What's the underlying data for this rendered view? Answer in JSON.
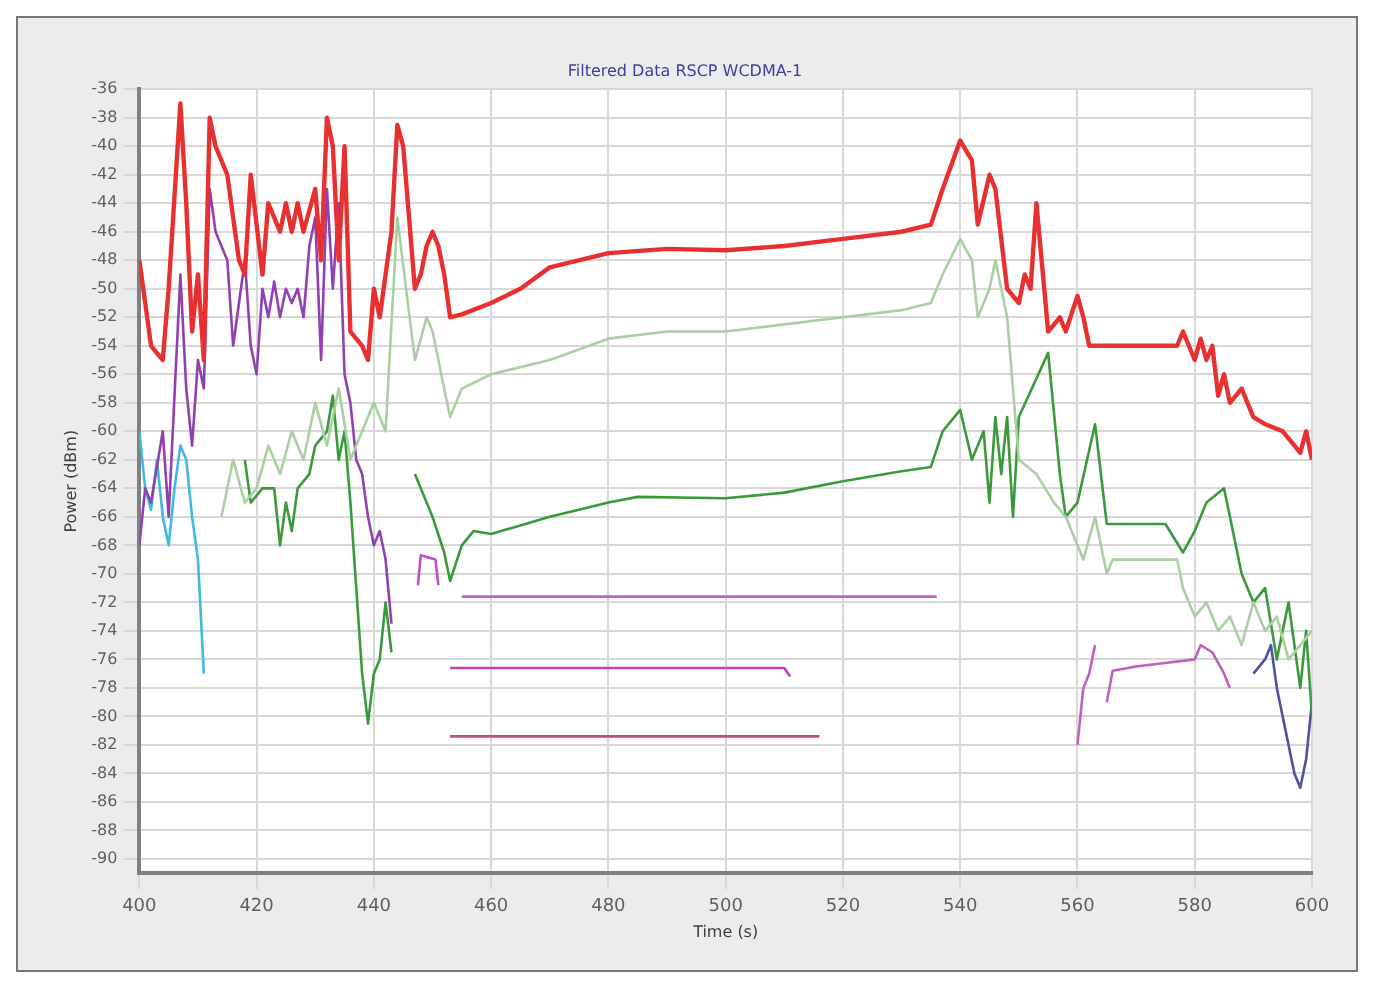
{
  "chart_data": {
    "type": "line",
    "title": "Filtered Data RSCP WCDMA-1",
    "xlabel": "Time (s)",
    "ylabel": "Power (dBm)",
    "xlim": [
      400,
      600
    ],
    "xticks": [
      400,
      420,
      440,
      460,
      480,
      500,
      520,
      540,
      560,
      580,
      600
    ],
    "ylim": [
      -91,
      -36
    ],
    "yticks": [
      -36,
      -38,
      -40,
      -42,
      -44,
      -46,
      -48,
      -50,
      -52,
      -54,
      -56,
      -58,
      -60,
      -62,
      -64,
      -66,
      -68,
      -70,
      -72,
      -74,
      -76,
      -78,
      -80,
      -82,
      -84,
      -86,
      -88,
      -90
    ],
    "grid": true,
    "legend": false,
    "marker": "none",
    "line_style": "solid",
    "series": [
      {
        "color": "#e83030",
        "x": [
          400,
          402,
          404,
          405,
          407,
          408,
          409,
          410,
          411,
          412,
          413,
          415,
          417,
          418,
          419,
          421,
          422,
          424,
          425,
          426,
          427,
          428,
          430,
          431,
          432,
          433,
          434,
          435,
          436,
          438,
          439,
          440,
          441,
          443,
          444,
          445,
          447,
          448,
          449,
          450,
          451,
          452,
          453,
          455,
          460,
          465,
          470,
          480,
          490,
          500,
          510,
          520,
          530,
          535,
          537,
          540,
          542,
          543,
          545,
          546,
          548,
          550,
          551,
          552,
          553,
          555,
          557,
          558,
          560,
          561,
          562,
          570,
          577,
          578,
          580,
          581,
          582,
          583,
          584,
          585,
          586,
          588,
          590,
          592,
          595,
          598,
          599,
          600
        ],
        "values": [
          -48,
          -54,
          -55,
          -50,
          -37,
          -44,
          -53,
          -49,
          -55,
          -38,
          -40,
          -42,
          -48,
          -49,
          -42,
          -49,
          -44,
          -46,
          -44,
          -46,
          -44,
          -46,
          -43,
          -48,
          -38,
          -40,
          -48,
          -40,
          -53,
          -54,
          -55,
          -50,
          -52,
          -46,
          -38.5,
          -40,
          -50,
          -49,
          -47,
          -46,
          -47,
          -49,
          -52,
          -51.8,
          -51,
          -50,
          -48.5,
          -47.5,
          -47.2,
          -47.3,
          -47,
          -46.5,
          -46,
          -45.5,
          -43,
          -39.6,
          -41,
          -45.5,
          -42,
          -43,
          -50,
          -51,
          -49,
          -50,
          -44,
          -53,
          -52,
          -53,
          -50.5,
          -52,
          -54,
          -54,
          -54,
          -53,
          -55,
          -53.5,
          -55,
          -54,
          -57.5,
          -56,
          -58,
          -57,
          -59,
          -59.5,
          -60,
          -61.5,
          -60,
          -62
        ]
      },
      {
        "color": "#a8d0a0",
        "x": [
          414,
          416,
          418,
          420,
          422,
          424,
          426,
          428,
          430,
          432,
          434,
          436,
          438,
          440,
          442,
          444,
          447,
          449,
          450,
          452,
          453,
          455,
          460,
          470,
          480,
          490,
          500,
          510,
          520,
          530,
          535,
          537,
          540,
          542,
          543,
          545,
          546,
          548,
          550,
          553,
          556,
          558,
          561,
          563,
          565,
          566,
          570,
          577,
          578,
          580,
          582,
          584,
          586,
          588,
          590,
          592,
          594,
          596,
          598,
          600
        ],
        "values": [
          -66,
          -62,
          -65,
          -64,
          -61,
          -63,
          -60,
          -62,
          -58,
          -61,
          -57,
          -62,
          -60,
          -58,
          -60,
          -45,
          -55,
          -52,
          -53,
          -57,
          -59,
          -57,
          -56,
          -55,
          -53.5,
          -53,
          -53,
          -52.5,
          -52,
          -51.5,
          -51,
          -49,
          -46.5,
          -48,
          -52,
          -50,
          -48,
          -52,
          -62,
          -63,
          -65,
          -66,
          -69,
          -66,
          -70,
          -69,
          -69,
          -69,
          -71,
          -73,
          -72,
          -74,
          -73,
          -75,
          -72,
          -74,
          -73,
          -76,
          -75,
          -74
        ]
      },
      {
        "color": "#3a9a3a",
        "x": [
          418,
          419,
          421,
          423,
          424,
          425,
          426,
          427,
          429,
          430,
          432,
          433,
          434,
          435,
          436,
          437,
          438,
          439,
          440,
          441,
          442,
          443,
          444,
          447,
          450,
          452,
          453,
          455,
          457,
          460,
          470,
          480,
          485,
          500,
          510,
          520,
          530,
          535,
          537,
          540,
          542,
          544,
          545,
          546,
          547,
          548,
          549,
          550,
          555,
          557,
          558,
          560,
          563,
          565,
          570,
          575,
          578,
          580,
          582,
          585,
          586,
          588,
          590,
          592,
          594,
          596,
          598,
          599,
          600
        ],
        "values": [
          -62,
          -65,
          -64,
          -64,
          -68,
          -65,
          -67,
          -64,
          -63,
          -61,
          -60,
          -57.5,
          -62,
          -60,
          -65,
          -71,
          -77,
          -80.5,
          -77,
          -76,
          -72,
          -75.5,
          null,
          -63,
          -66,
          -68.5,
          -70.5,
          -68,
          -67,
          -67.2,
          -66,
          -65,
          -64.6,
          -64.7,
          -64.3,
          -63.5,
          -62.8,
          -62.5,
          -60,
          -58.5,
          -62,
          -60,
          -65,
          -59,
          -63,
          -59,
          -66,
          -59,
          -54.5,
          -63,
          -66,
          -65,
          -59.5,
          -66.5,
          -66.5,
          -66.5,
          -68.5,
          -67,
          -65,
          -64,
          -66,
          -70,
          -72,
          -71,
          -76,
          -72,
          -78,
          -74,
          -80
        ]
      },
      {
        "color": "#9040b0",
        "x": [
          400,
          401,
          402,
          404,
          405,
          407,
          408,
          409,
          410,
          411,
          412,
          413,
          415,
          416,
          418,
          419,
          420,
          421,
          422,
          423,
          424,
          425,
          426,
          427,
          428,
          429,
          430,
          431,
          432,
          433,
          434,
          435,
          436,
          437,
          438,
          439,
          440,
          441,
          442,
          443
        ],
        "values": [
          -68,
          -64,
          -65,
          -60,
          -66,
          -49,
          -57,
          -61,
          -55,
          -57,
          -43,
          -46,
          -48,
          -54,
          -48,
          -54,
          -56,
          -50,
          -52,
          -49.5,
          -52,
          -50,
          -51,
          -50,
          -52,
          -47,
          -45,
          -55,
          -43,
          -50,
          -44,
          -56,
          -58,
          -62,
          -63,
          -66,
          -68,
          -67,
          -69,
          -73.5
        ]
      },
      {
        "color": "#40b8e0",
        "x": [
          400,
          401,
          402,
          403,
          404,
          405,
          406,
          407,
          408,
          409,
          410,
          411
        ],
        "values": [
          -60,
          -64,
          -65.5,
          -62,
          -66,
          -68,
          -64,
          -61,
          -62,
          -66,
          -69,
          -77
        ]
      },
      {
        "color": "#c050c8",
        "x": [
          447.5,
          448,
          450.5,
          451
        ],
        "values": [
          -70.8,
          -68.7,
          -69,
          -70.8
        ]
      },
      {
        "color": "#c060c0",
        "x": [
          455,
          536,
          537,
          560,
          561,
          562,
          563,
          564,
          565,
          566,
          570,
          580,
          581,
          583,
          585,
          586
        ],
        "values": [
          -71.6,
          -71.6,
          null,
          -82,
          -78,
          -77,
          -75,
          null,
          -79,
          -76.8,
          -76.5,
          -76,
          -75,
          -75.5,
          -77,
          -78
        ]
      },
      {
        "color": "#c040c0",
        "x": [
          453,
          510,
          511
        ],
        "values": [
          -76.6,
          -76.6,
          -77.2
        ]
      },
      {
        "color": "#c05070",
        "x": [
          453,
          516
        ],
        "values": [
          -81.4,
          -81.4
        ]
      },
      {
        "color": "#5050a0",
        "x": [
          590,
          592,
          593,
          594,
          596,
          597,
          598,
          599,
          600
        ],
        "values": [
          -77,
          -76,
          -75,
          -78,
          -82,
          -84,
          -85,
          -83,
          -79
        ]
      }
    ]
  }
}
